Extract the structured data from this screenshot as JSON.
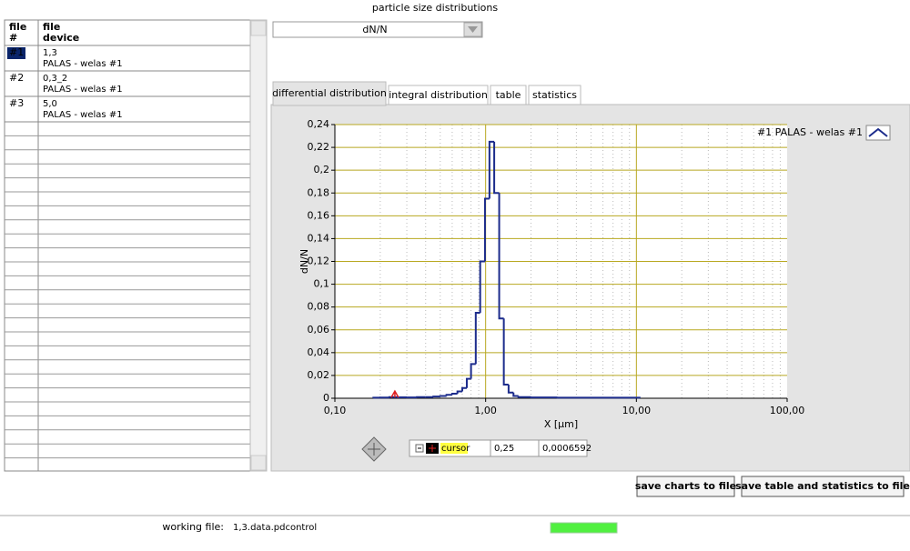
{
  "window_title": "particle size distributions",
  "file_table": {
    "columns": [
      [
        "file",
        "#"
      ],
      [
        "file",
        "device"
      ]
    ],
    "rows": [
      {
        "id": "#1",
        "name": "1,3",
        "device": "PALAS - welas #1"
      },
      {
        "id": "#2",
        "name": "0,3_2",
        "device": "PALAS - welas #1"
      },
      {
        "id": "#3",
        "name": "5,0",
        "device": "PALAS - welas #1"
      }
    ]
  },
  "selector": "dN/N",
  "tabs": [
    "differential distribution",
    "integral distribution",
    "table",
    "statistics"
  ],
  "chart_data": {
    "type": "histogram",
    "xlabel": "X [µm]",
    "ylabel": "dN/N",
    "log_x": true,
    "grid": true,
    "legend": "top-right",
    "xlim": [
      0.1,
      100
    ],
    "xticks": [
      {
        "value": 0.1,
        "label": "0,10"
      },
      {
        "value": 1,
        "label": "1,00"
      },
      {
        "value": 10,
        "label": "10,00"
      },
      {
        "value": 100,
        "label": "100,00"
      }
    ],
    "ylim": [
      0,
      0.24
    ],
    "yticks": [
      0,
      {
        "value": 0.02,
        "label": "0,02"
      },
      {
        "value": 0.04,
        "label": "0,04"
      },
      {
        "value": 0.06,
        "label": "0,06"
      },
      {
        "value": 0.08,
        "label": "0,08"
      },
      {
        "value": 0.1,
        "label": "0,1"
      },
      {
        "value": 0.12,
        "label": "0,12"
      },
      {
        "value": 0.14,
        "label": "0,14"
      },
      {
        "value": 0.16,
        "label": "0,16"
      },
      {
        "value": 0.18,
        "label": "0,18"
      },
      {
        "value": 0.2,
        "label": "0,2"
      },
      {
        "value": 0.22,
        "label": "0,22"
      },
      {
        "value": 0.24,
        "label": "0,24"
      }
    ],
    "series": [
      {
        "name": "#1 PALAS - welas #1",
        "color": "#1c2c8c",
        "bins": [
          0.18,
          0.2,
          0.23,
          0.26,
          0.3,
          0.35,
          0.4,
          0.45,
          0.5,
          0.55,
          0.6,
          0.65,
          0.7,
          0.75,
          0.8,
          0.86,
          0.92,
          0.99,
          1.06,
          1.14,
          1.23,
          1.32,
          1.42,
          1.53,
          1.65,
          2,
          3,
          5,
          10.5
        ],
        "values": [
          0.0005,
          0.0006,
          0.001,
          0.0008,
          0.0007,
          0.001,
          0.001,
          0.0015,
          0.002,
          0.003,
          0.004,
          0.006,
          0.009,
          0.017,
          0.03,
          0.075,
          0.12,
          0.175,
          0.225,
          0.18,
          0.07,
          0.012,
          0.005,
          0.002,
          0.001,
          0.0007,
          0.0005,
          0.0005
        ]
      }
    ],
    "cursor": {
      "name": "cursor",
      "color": "#e02020",
      "x": 0.25,
      "y": 0.0006592,
      "value_labels": [
        "0,25",
        "0,0006592"
      ]
    }
  },
  "buttons": [
    "save charts to file",
    "save table and statistics to file"
  ],
  "status": {
    "label": "working file:",
    "file": "1,3.data.pdcontrol"
  }
}
